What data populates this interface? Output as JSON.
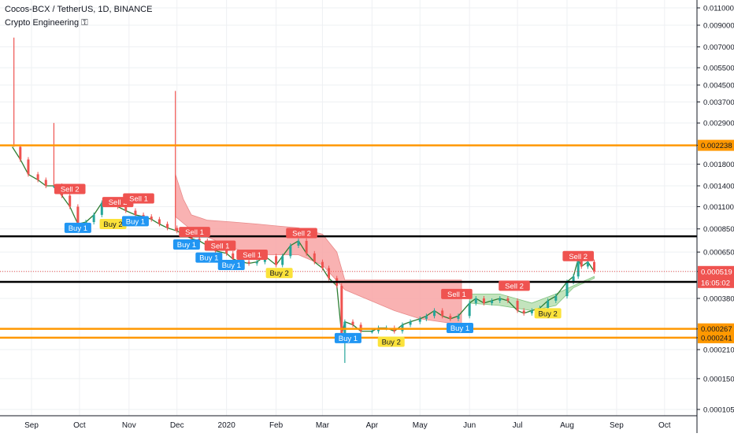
{
  "header": {
    "title": "Cocos-BCX / TetherUS, 1D, BINANCE",
    "indicator": "Crypto Engineering ⚿"
  },
  "colors": {
    "up": "#26a69a",
    "down": "#ef5350",
    "sell": "#ef5350",
    "buy": "#2196f3",
    "buy2": "#fbe23a",
    "orange_line": "#ff9800",
    "black_line": "#000000",
    "cloud_red": "#f8a5a5",
    "cloud_green": "#b9dfb1",
    "grid": "#eef0f3"
  },
  "chart_data": {
    "type": "candlestick",
    "title": "Cocos-BCX / TetherUS, 1D, BINANCE",
    "y_scale": "log",
    "y_ticks": [
      "0.011000",
      "0.009000",
      "0.007000",
      "0.005500",
      "0.004500",
      "0.003700",
      "0.002900",
      "0.002238",
      "0.001800",
      "0.001400",
      "0.001100",
      "0.000850",
      "0.000650",
      "0.000519",
      "0.000380",
      "0.000267",
      "0.000241",
      "0.000210",
      "0.000150",
      "0.000105"
    ],
    "x_ticks": [
      "Sep",
      "Oct",
      "Nov",
      "Dec",
      "2020",
      "Feb",
      "Mar",
      "Apr",
      "May",
      "Jun",
      "Jul",
      "Aug",
      "Sep",
      "Oct"
    ],
    "horizontal_levels": [
      {
        "value": 0.002238,
        "color": "orange",
        "label": "0.002238"
      },
      {
        "value": 0.00078,
        "color": "black"
      },
      {
        "value": 0.00046,
        "color": "black"
      },
      {
        "value": 0.000267,
        "color": "orange",
        "label": "0.000267"
      },
      {
        "value": 0.000241,
        "color": "orange",
        "label": "0.000241"
      }
    ],
    "last_price": {
      "value": 0.000519,
      "label": "0.000519",
      "countdown": "16:05:02"
    },
    "close_series": [
      [
        "2019-08-20",
        0.0022
      ],
      [
        "2019-08-25",
        0.0019
      ],
      [
        "2019-08-30",
        0.0016
      ],
      [
        "2019-09-05",
        0.0015
      ],
      [
        "2019-09-10",
        0.0014
      ],
      [
        "2019-09-15",
        0.0014
      ],
      [
        "2019-09-20",
        0.00125
      ],
      [
        "2019-09-25",
        0.0011
      ],
      [
        "2019-09-30",
        0.0009
      ],
      [
        "2019-10-05",
        0.00092
      ],
      [
        "2019-10-10",
        0.001
      ],
      [
        "2019-10-15",
        0.00115
      ],
      [
        "2019-10-20",
        0.00118
      ],
      [
        "2019-10-25",
        0.0011
      ],
      [
        "2019-10-30",
        0.00105
      ],
      [
        "2019-11-05",
        0.001
      ],
      [
        "2019-11-10",
        0.00098
      ],
      [
        "2019-11-15",
        0.00095
      ],
      [
        "2019-11-20",
        0.0009
      ],
      [
        "2019-11-25",
        0.00086
      ],
      [
        "2019-12-01",
        0.00083
      ],
      [
        "2019-12-05",
        0.0008
      ],
      [
        "2019-12-10",
        0.00076
      ],
      [
        "2019-12-15",
        0.00074
      ],
      [
        "2019-12-20",
        0.0007
      ],
      [
        "2019-12-25",
        0.00066
      ],
      [
        "2020-01-01",
        0.00064
      ],
      [
        "2020-01-05",
        0.0006
      ],
      [
        "2020-01-10",
        0.00058
      ],
      [
        "2020-01-15",
        0.00057
      ],
      [
        "2020-01-20",
        0.00058
      ],
      [
        "2020-01-25",
        0.00062
      ],
      [
        "2020-02-01",
        0.00056
      ],
      [
        "2020-02-05",
        0.00062
      ],
      [
        "2020-02-10",
        0.0007
      ],
      [
        "2020-02-15",
        0.00074
      ],
      [
        "2020-02-20",
        0.00064
      ],
      [
        "2020-02-25",
        0.00058
      ],
      [
        "2020-03-01",
        0.00054
      ],
      [
        "2020-03-05",
        0.00048
      ],
      [
        "2020-03-10",
        0.00044
      ],
      [
        "2020-03-13",
        0.00025
      ],
      [
        "2020-03-15",
        0.00029
      ],
      [
        "2020-03-20",
        0.00028
      ],
      [
        "2020-03-25",
        0.00026
      ],
      [
        "2020-04-01",
        0.00026
      ],
      [
        "2020-04-05",
        0.00027
      ],
      [
        "2020-04-10",
        0.00027
      ],
      [
        "2020-04-15",
        0.00026
      ],
      [
        "2020-04-20",
        0.00028
      ],
      [
        "2020-04-25",
        0.00029
      ],
      [
        "2020-05-01",
        0.0003
      ],
      [
        "2020-05-05",
        0.00031
      ],
      [
        "2020-05-10",
        0.00033
      ],
      [
        "2020-05-15",
        0.00031
      ],
      [
        "2020-05-20",
        0.0003
      ],
      [
        "2020-05-25",
        0.00031
      ],
      [
        "2020-06-01",
        0.00036
      ],
      [
        "2020-06-05",
        0.00038
      ],
      [
        "2020-06-10",
        0.00036
      ],
      [
        "2020-06-15",
        0.00037
      ],
      [
        "2020-06-20",
        0.00038
      ],
      [
        "2020-06-25",
        0.00037
      ],
      [
        "2020-07-01",
        0.00033
      ],
      [
        "2020-07-05",
        0.00032
      ],
      [
        "2020-07-10",
        0.00033
      ],
      [
        "2020-07-15",
        0.00034
      ],
      [
        "2020-07-20",
        0.00037
      ],
      [
        "2020-07-25",
        0.00039
      ],
      [
        "2020-08-01",
        0.00046
      ],
      [
        "2020-08-05",
        0.00049
      ],
      [
        "2020-08-08",
        0.0006
      ],
      [
        "2020-08-10",
        0.00055
      ],
      [
        "2020-08-14",
        0.00058
      ],
      [
        "2020-08-18",
        0.00052
      ]
    ],
    "spikes": [
      {
        "date": "2019-08-21",
        "high": 0.0078
      },
      {
        "date": "2019-09-15",
        "high": 0.0029
      },
      {
        "date": "2019-11-30",
        "high": 0.0042
      },
      {
        "date": "2020-03-15",
        "low": 0.00018
      }
    ],
    "cloud": [
      {
        "color": "red",
        "upper": [
          [
            "2019-11-30",
            0.0016
          ],
          [
            "2019-12-05",
            0.0012
          ],
          [
            "2019-12-10",
            0.001
          ],
          [
            "2019-12-20",
            0.00094
          ],
          [
            "2020-01-05",
            0.00092
          ],
          [
            "2020-01-20",
            0.0009
          ],
          [
            "2020-02-01",
            0.00088
          ],
          [
            "2020-02-15",
            0.00086
          ],
          [
            "2020-03-01",
            0.0008
          ],
          [
            "2020-03-10",
            0.00065
          ],
          [
            "2020-03-15",
            0.00047
          ],
          [
            "2020-04-15",
            0.00047
          ],
          [
            "2020-05-27",
            0.00047
          ]
        ],
        "lower": [
          [
            "2019-11-30",
            0.00098
          ],
          [
            "2019-12-10",
            0.00084
          ],
          [
            "2020-01-05",
            0.00068
          ],
          [
            "2020-01-20",
            0.00063
          ],
          [
            "2020-02-15",
            0.00063
          ],
          [
            "2020-03-01",
            0.00056
          ],
          [
            "2020-03-15",
            0.00042
          ],
          [
            "2020-04-15",
            0.00033
          ],
          [
            "2020-05-01",
            0.0003
          ],
          [
            "2020-05-27",
            0.00028
          ]
        ]
      },
      {
        "color": "green",
        "upper": [
          [
            "2020-06-01",
            0.0004
          ],
          [
            "2020-06-20",
            0.0004
          ],
          [
            "2020-07-10",
            0.00036
          ],
          [
            "2020-07-25",
            0.0004
          ],
          [
            "2020-08-05",
            0.00044
          ],
          [
            "2020-08-18",
            0.00049
          ]
        ],
        "lower": [
          [
            "2020-06-01",
            0.00036
          ],
          [
            "2020-06-20",
            0.00035
          ],
          [
            "2020-07-10",
            0.00033
          ],
          [
            "2020-07-25",
            0.00035
          ],
          [
            "2020-08-05",
            0.00043
          ],
          [
            "2020-08-18",
            0.00048
          ]
        ]
      }
    ],
    "signals": [
      {
        "type": "sell",
        "text": "Sell 2",
        "date": "2019-09-25",
        "price": 0.00135
      },
      {
        "type": "sell",
        "text": "Sell 2",
        "date": "2019-10-25",
        "price": 0.00116
      },
      {
        "type": "sell",
        "text": "Sell 1",
        "date": "2019-11-07",
        "price": 0.00121
      },
      {
        "type": "sell",
        "text": "Sell 1",
        "date": "2019-12-12",
        "price": 0.00082
      },
      {
        "type": "sell",
        "text": "Sell 1",
        "date": "2019-12-28",
        "price": 0.0007
      },
      {
        "type": "sell",
        "text": "Sell 1",
        "date": "2020-01-17",
        "price": 0.00063
      },
      {
        "type": "sell",
        "text": "Sell 2",
        "date": "2020-02-17",
        "price": 0.00081
      },
      {
        "type": "sell",
        "text": "Sell 1",
        "date": "2020-05-24",
        "price": 0.0004
      },
      {
        "type": "sell",
        "text": "Sell 2",
        "date": "2020-06-29",
        "price": 0.00044
      },
      {
        "type": "sell",
        "text": "Sell 2",
        "date": "2020-08-08",
        "price": 0.00062
      },
      {
        "type": "buy",
        "text": "Buy 1",
        "date": "2019-09-30",
        "price": 0.00086
      },
      {
        "type": "buy2",
        "text": "Buy 2",
        "date": "2019-10-22",
        "price": 0.0009
      },
      {
        "type": "buy",
        "text": "Buy 1",
        "date": "2019-11-05",
        "price": 0.00093
      },
      {
        "type": "buy",
        "text": "Buy 1",
        "date": "2019-12-07",
        "price": 0.00071
      },
      {
        "type": "buy",
        "text": "Buy 1",
        "date": "2019-12-21",
        "price": 0.00061
      },
      {
        "type": "buy",
        "text": "Buy 1",
        "date": "2020-01-04",
        "price": 0.00056
      },
      {
        "type": "buy2",
        "text": "Buy 2",
        "date": "2020-02-03",
        "price": 0.00051
      },
      {
        "type": "buy",
        "text": "Buy 1",
        "date": "2020-03-17",
        "price": 0.00024
      },
      {
        "type": "buy2",
        "text": "Buy 2",
        "date": "2020-04-13",
        "price": 0.00023
      },
      {
        "type": "buy",
        "text": "Buy 1",
        "date": "2020-05-26",
        "price": 0.00027
      },
      {
        "type": "buy2",
        "text": "Buy 2",
        "date": "2020-07-20",
        "price": 0.00032
      }
    ]
  }
}
